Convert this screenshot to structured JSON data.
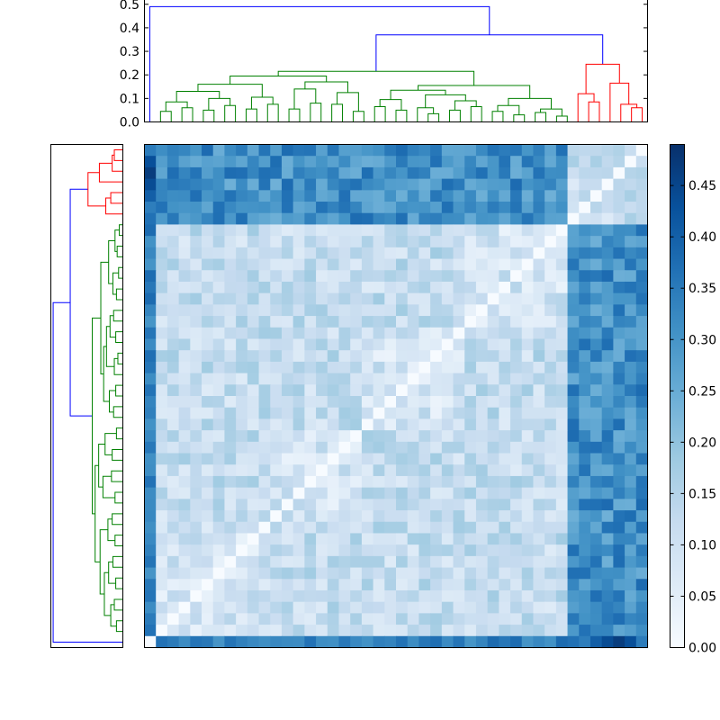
{
  "chart_data": [
    {
      "type": "dendrogram",
      "orientation": "top",
      "leaf_count": 44,
      "ylim": [
        0,
        0.5
      ],
      "yticks": [
        0.0,
        0.1,
        0.2,
        0.3,
        0.4,
        0.5
      ],
      "ytick_labels": [
        "0.0",
        "0.1",
        "0.2",
        "0.3",
        "0.4",
        "0.5"
      ],
      "root_height": 0.49,
      "clusters": [
        {
          "color": "#008000",
          "leaves": 36,
          "height": 0.215
        },
        {
          "color": "#ff0000",
          "leaves": 7,
          "height": 0.245
        },
        {
          "color": "#0000ff",
          "role": "linkages above threshold",
          "heights": [
            0.37,
            0.49
          ]
        }
      ]
    },
    {
      "type": "dendrogram",
      "orientation": "left",
      "leaf_count": 44,
      "clusters": [
        {
          "color": "#ff0000",
          "leaves": 7
        },
        {
          "color": "#008000",
          "leaves": 36
        },
        {
          "color": "#0000ff",
          "role": "linkages above threshold"
        }
      ]
    },
    {
      "type": "heatmap",
      "colormap": "Blues",
      "rows": 44,
      "cols": 44,
      "matrix": "symmetric distance matrix, zero diagonal",
      "vmin": 0.0,
      "vmax": 0.49,
      "blocks": [
        {
          "rows": "row 1",
          "cols": "green/red block columns",
          "value_range": [
            0.25,
            0.34
          ]
        },
        {
          "rows": "rows 2-3",
          "cols": "green block columns",
          "value_range": [
            0.33,
            0.44
          ]
        },
        {
          "rows": "rows 4-7",
          "cols": "green block columns",
          "value_range": [
            0.25,
            0.34
          ]
        },
        {
          "rows": "green block",
          "cols": "green block",
          "value_range": [
            0.03,
            0.2
          ]
        },
        {
          "rows": "green block",
          "cols": "red block columns",
          "value_range": [
            0.22,
            0.4
          ]
        },
        {
          "rows": "last row",
          "cols": "all columns",
          "value_range": [
            0.32,
            0.49
          ]
        }
      ],
      "colorbar": {
        "ticks": [
          0.0,
          0.05,
          0.1,
          0.15,
          0.2,
          0.25,
          0.3,
          0.35,
          0.4,
          0.45
        ],
        "tick_labels": [
          "0.00",
          "0.05",
          "0.10",
          "0.15",
          "0.20",
          "0.25",
          "0.30",
          "0.35",
          "0.40",
          "0.45"
        ]
      }
    }
  ]
}
